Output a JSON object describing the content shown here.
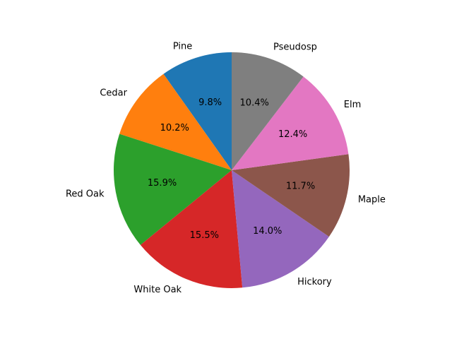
{
  "chart_data": {
    "type": "pie",
    "title": "",
    "start_angle_deg": 90,
    "direction": "counterclockwise",
    "slices": [
      {
        "label": "Pine",
        "value": 9.8,
        "pct_text": "9.8%",
        "color": "#1f77b4"
      },
      {
        "label": "Cedar",
        "value": 10.2,
        "pct_text": "10.2%",
        "color": "#ff7f0e"
      },
      {
        "label": "Red Oak",
        "value": 15.9,
        "pct_text": "15.9%",
        "color": "#2ca02c"
      },
      {
        "label": "White Oak",
        "value": 15.5,
        "pct_text": "15.5%",
        "color": "#d62728"
      },
      {
        "label": "Hickory",
        "value": 14.0,
        "pct_text": "14.0%",
        "color": "#9467bd"
      },
      {
        "label": "Maple",
        "value": 11.7,
        "pct_text": "11.7%",
        "color": "#8c564b"
      },
      {
        "label": "Elm",
        "value": 12.4,
        "pct_text": "12.4%",
        "color": "#e377c2"
      },
      {
        "label": "Pseudosp",
        "value": 10.4,
        "pct_text": "10.4%",
        "color": "#7f7f7f"
      }
    ]
  }
}
